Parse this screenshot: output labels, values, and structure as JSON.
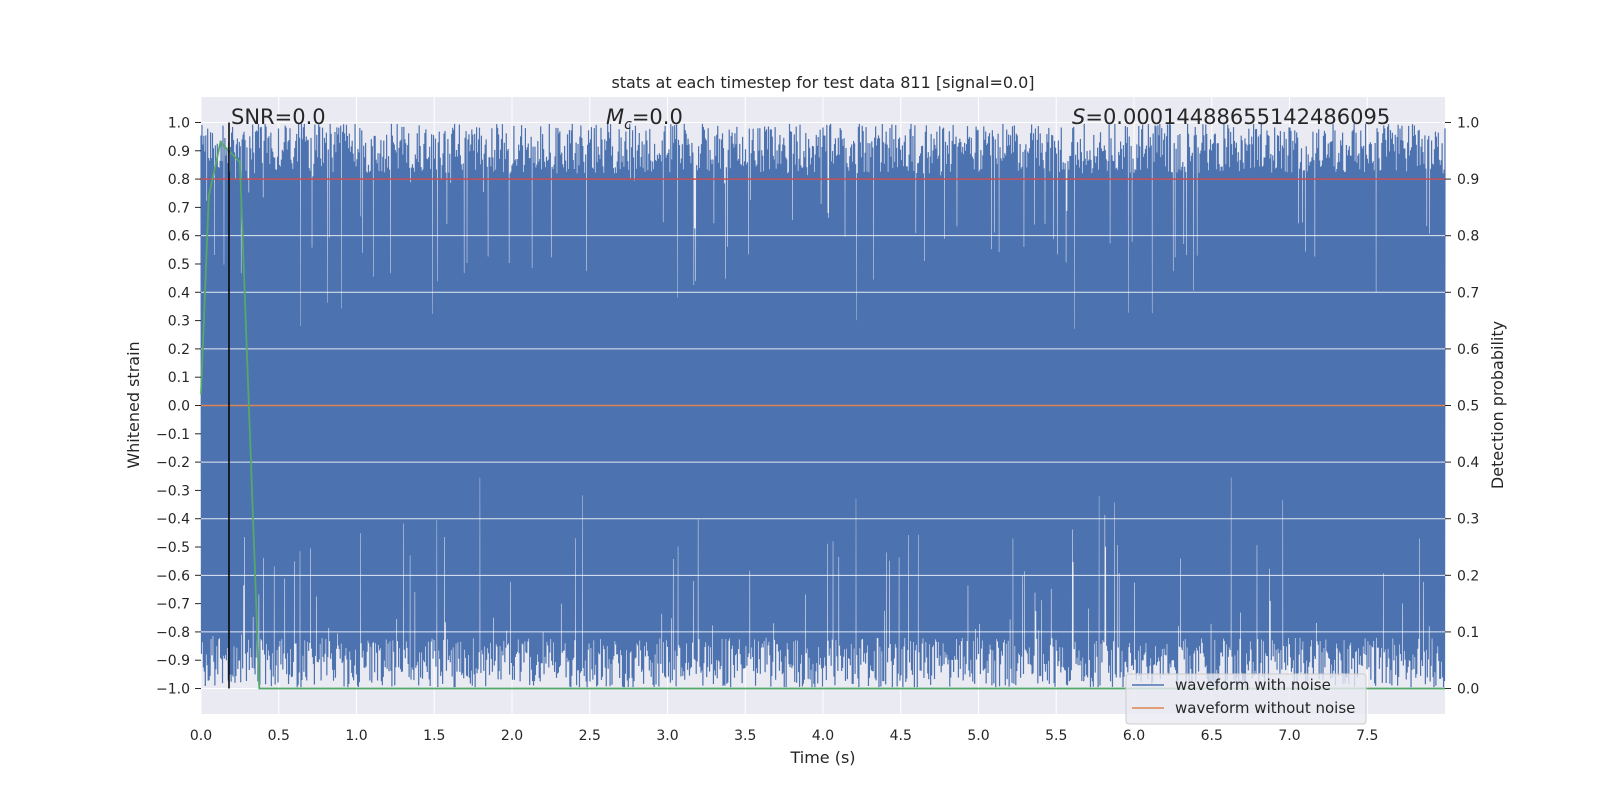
{
  "chart_data": {
    "type": "line",
    "title": "stats at each timestep for test data 811 [signal=0.0]",
    "xlabel": "Time (s)",
    "ylabel": "Whitened strain",
    "ylabel_right": "Detection probability",
    "xlim": [
      0.0,
      8.0
    ],
    "ylim": [
      -1.09,
      1.09
    ],
    "ylim_right": [
      -0.045,
      1.045
    ],
    "x_ticks": [
      0.0,
      0.5,
      1.0,
      1.5,
      2.0,
      2.5,
      3.0,
      3.5,
      4.0,
      4.5,
      5.0,
      5.5,
      6.0,
      6.5,
      7.0,
      7.5
    ],
    "x_tick_labels": [
      "0.0",
      "0.5",
      "1.0",
      "1.5",
      "2.0",
      "2.5",
      "3.0",
      "3.5",
      "4.0",
      "4.5",
      "5.0",
      "5.5",
      "6.0",
      "6.5",
      "7.0",
      "7.5"
    ],
    "y_ticks": [
      1.0,
      0.9,
      0.8,
      0.7,
      0.6,
      0.5,
      0.4,
      0.3,
      0.2,
      0.1,
      0.0,
      -0.1,
      -0.2,
      -0.3,
      -0.4,
      -0.5,
      -0.6,
      -0.7,
      -0.8,
      -0.9,
      -1.0
    ],
    "y_tick_labels": [
      "1.0",
      "0.9",
      "0.8",
      "0.7",
      "0.6",
      "0.5",
      "0.4",
      "0.3",
      "0.2",
      "0.1",
      "0.0",
      "−0.1",
      "−0.2",
      "−0.3",
      "−0.4",
      "−0.5",
      "−0.6",
      "−0.7",
      "−0.8",
      "−0.9",
      "−1.0"
    ],
    "y_right_ticks": [
      1.0,
      0.9,
      0.8,
      0.7,
      0.6,
      0.5,
      0.4,
      0.3,
      0.2,
      0.1,
      0.0
    ],
    "y_right_tick_labels": [
      "1.0",
      "0.9",
      "0.8",
      "0.7",
      "0.6",
      "0.5",
      "0.4",
      "0.3",
      "0.2",
      "0.1",
      "0.0"
    ],
    "grid": true,
    "legend_placement": "lower-right",
    "annotations": {
      "snr": "SNR=0.0",
      "mc_symbol": "M",
      "mc_sub": "c",
      "mc_rest": "=0.0",
      "s_symbol": "S",
      "s_rest": "=0.00014488655142486095"
    },
    "marker_line_x": 0.18,
    "series": [
      {
        "name": "waveform with noise",
        "color": "#4c72b0",
        "description_values": "dense whitened noise spanning approx. -1.0 to 1.0 over 0-8 s"
      },
      {
        "name": "waveform without noise",
        "color": "#dd8452",
        "x": [
          0.0,
          8.0
        ],
        "y": [
          0.0,
          0.0
        ]
      },
      {
        "color": "#55a868",
        "axis": "right",
        "x": [
          0.0,
          0.05,
          0.125,
          0.25,
          0.375,
          0.5,
          1.0,
          2.0,
          3.0,
          4.0,
          5.0,
          6.0,
          7.0,
          8.0
        ],
        "y": [
          0.52,
          0.87,
          0.965,
          0.93,
          0.0,
          0.0,
          0.0,
          0.0,
          0.0,
          0.0,
          0.0,
          0.0,
          0.0,
          0.0
        ]
      }
    ],
    "threshold_line": {
      "axis": "right",
      "value": 0.9,
      "color": "#c44e52"
    }
  }
}
